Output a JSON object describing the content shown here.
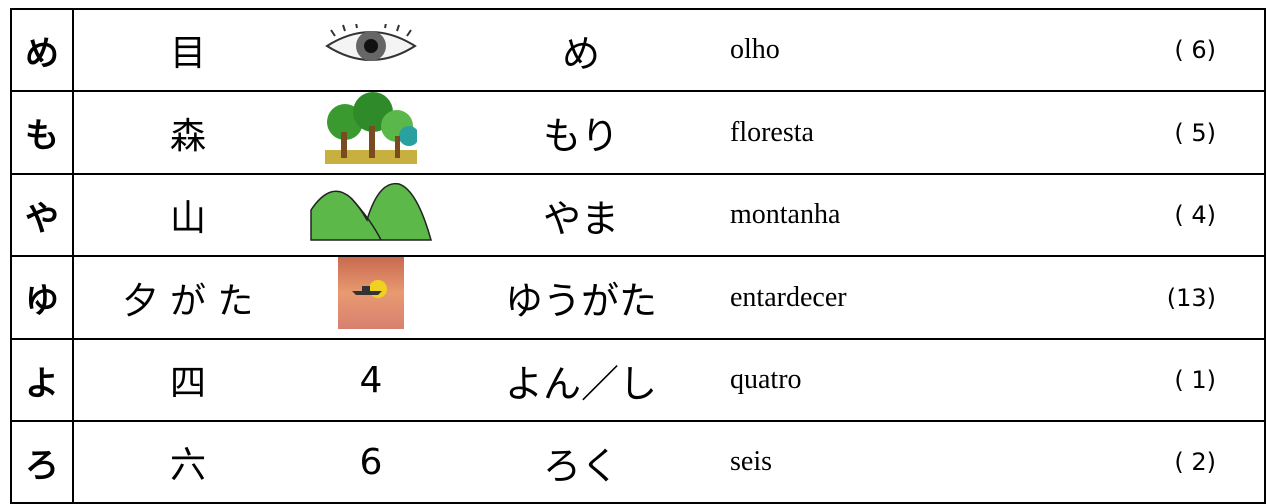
{
  "table": {
    "rows": [
      {
        "kana": "め",
        "kanji": "目",
        "reading": "め",
        "meaning": "olho",
        "number": "( 6)"
      },
      {
        "kana": "も",
        "kanji": "森",
        "reading": "もり",
        "meaning": "floresta",
        "number": "( 5)"
      },
      {
        "kana": "や",
        "kanji": "山",
        "reading": "やま",
        "meaning": "montanha",
        "number": "( 4)"
      },
      {
        "kana": "ゆ",
        "kanji": "夕 が た",
        "reading": "ゆうがた",
        "meaning": "entardecer",
        "number": "(13)"
      },
      {
        "kana": "よ",
        "kanji": "四",
        "picture": "4",
        "reading": "よん／し",
        "meaning": "quatro",
        "number": "( 1)"
      },
      {
        "kana": "ろ",
        "kanji": "六",
        "picture": "6",
        "reading": "ろく",
        "meaning": "seis",
        "number": "( 2)"
      }
    ]
  }
}
